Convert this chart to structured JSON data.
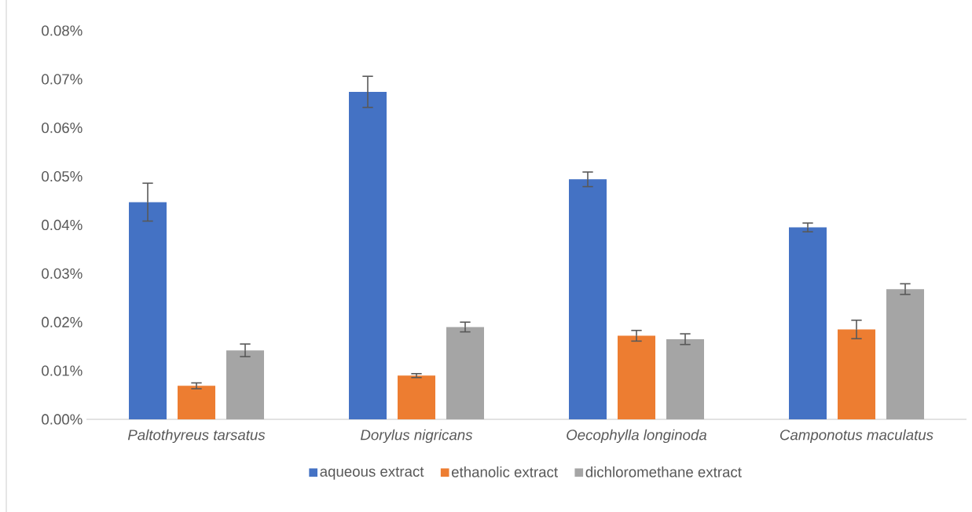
{
  "chart_data": {
    "type": "bar",
    "categories": [
      "*Paltothyreus tarsatus*",
      "*Dorylus nigricans*",
      "*Oecophylla longinoda*",
      "*Camponotus maculatus*"
    ],
    "series": [
      {
        "name": "aqueous extract",
        "color": "#4472c4",
        "values": [
          0.0447,
          0.0674,
          0.0494,
          0.0395
        ],
        "errors": [
          0.0039,
          0.0032,
          0.0015,
          0.0009
        ]
      },
      {
        "name": "ethanolic extract",
        "color": "#ed7d31",
        "values": [
          0.0069,
          0.009,
          0.0172,
          0.0185
        ],
        "errors": [
          0.0006,
          0.0004,
          0.0011,
          0.0019
        ]
      },
      {
        "name": "dichloromethane extract",
        "color": "#a5a5a5",
        "values": [
          0.0142,
          0.019,
          0.0165,
          0.0268
        ],
        "errors": [
          0.0013,
          0.001,
          0.0011,
          0.0011
        ]
      }
    ],
    "ylim": [
      0,
      0.08
    ],
    "yticks": [
      {
        "value": 0,
        "label": "0.00%"
      },
      {
        "value": 0.01,
        "label": "0.01%"
      },
      {
        "value": 0.02,
        "label": "0.02%"
      },
      {
        "value": 0.03,
        "label": "0.03%"
      },
      {
        "value": 0.04,
        "label": "0.04%"
      },
      {
        "value": 0.05,
        "label": "0.05%"
      },
      {
        "value": 0.06,
        "label": "0.06%"
      },
      {
        "value": 0.07,
        "label": "0.07%"
      },
      {
        "value": 0.08,
        "label": "0.08%"
      }
    ],
    "legend": "bottom"
  }
}
